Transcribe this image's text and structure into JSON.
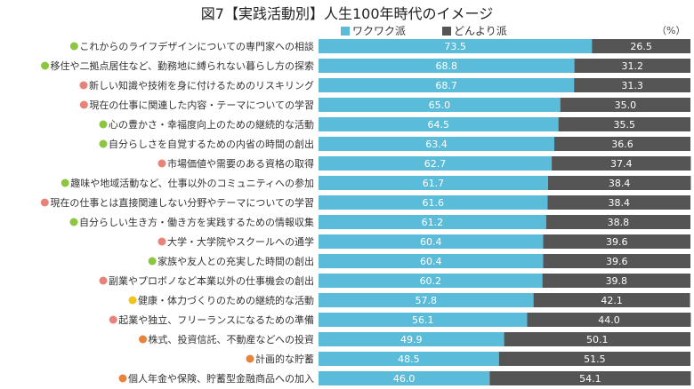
{
  "chart_data": {
    "type": "bar",
    "stacked": true,
    "orientation": "horizontal",
    "title": "図7【実践活動別】人生100年時代のイメージ",
    "unit": "（%）",
    "xlim": [
      0,
      100
    ],
    "categories": [
      "これからのライフデザインについての専門家への相談",
      "移住や二拠点居住など、勤務地に縛られない暮らし方の探索",
      "新しい知識や技術を身に付けるためのリスキリング",
      "現在の仕事に関連した内容・テーマについての学習",
      "心の豊かさ・幸福度向上のための継続的な活動",
      "自分らしさを自覚するための内省の時間の創出",
      "市場価値や需要のある資格の取得",
      "趣味や地域活動など、仕事以外のコミュニティへの参加",
      "現在の仕事とは直接関連しない分野やテーマについての学習",
      "自分らしい生き方・働き方を実践するための情報収集",
      "大学・大学院やスクールへの通学",
      "家族や友人との充実した時間の創出",
      "副業やプロボノなど本業以外の仕事機会の創出",
      "健康・体力づくりのための継続的な活動",
      "起業や独立、フリーランスになるための準備",
      "株式、投資信託、不動産などへの投資",
      "計画的な貯蓄",
      "個人年金や保険、貯蓄型金融商品への加入"
    ],
    "category_marker_colors": [
      "#8cc63f",
      "#8cc63f",
      "#e8837a",
      "#e8837a",
      "#8cc63f",
      "#8cc63f",
      "#e8837a",
      "#8cc63f",
      "#e8837a",
      "#8cc63f",
      "#e8837a",
      "#8cc63f",
      "#e8837a",
      "#f4c21a",
      "#e8837a",
      "#e8833a",
      "#e8833a",
      "#e8833a"
    ],
    "series": [
      {
        "name": "ワクワク派",
        "color": "#5bbcd9",
        "values": [
          73.5,
          68.8,
          68.7,
          65.0,
          64.5,
          63.4,
          62.7,
          61.7,
          61.6,
          61.2,
          60.4,
          60.4,
          60.2,
          57.8,
          56.1,
          49.9,
          48.5,
          46.0
        ]
      },
      {
        "name": "どんより派",
        "color": "#555555",
        "values": [
          26.5,
          31.2,
          31.3,
          35.0,
          35.5,
          36.6,
          37.4,
          38.4,
          38.4,
          38.8,
          39.6,
          39.6,
          39.8,
          42.1,
          44.0,
          50.1,
          51.5,
          54.1
        ]
      }
    ],
    "legend": "top"
  }
}
